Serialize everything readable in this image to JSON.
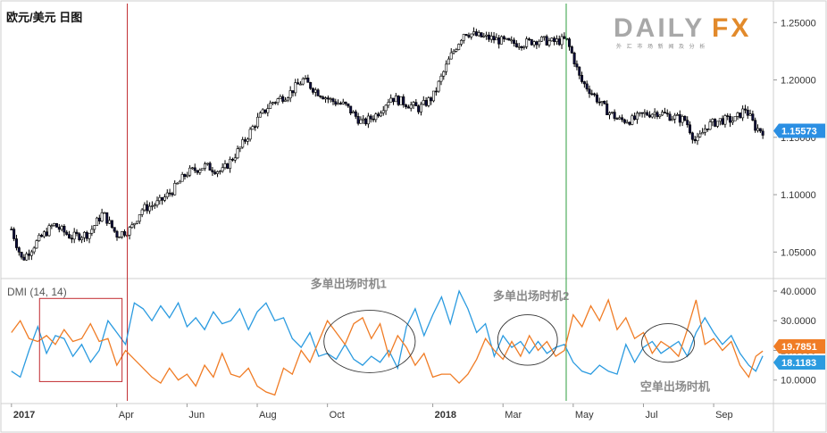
{
  "price_title": "欧元/美元 日图",
  "logo": {
    "word_left": "DAILY",
    "word_right": "FX",
    "tagline": "外 汇 市 场 新 闻 及 分 析",
    "colors": {
      "dark": "#a8a8a8",
      "accent": "#e28a2b"
    }
  },
  "colors": {
    "candle_up": "#ffffff",
    "candle_down": "#0d0d3a",
    "wick": "#000000",
    "plus_di": "#2b9be0",
    "minus_di": "#f07c25",
    "red_line": "#c0282d",
    "green_line": "#2e9e3e",
    "price_tag": "#2b8fe3"
  },
  "x_axis": {
    "labels": [
      "2017",
      "Apr",
      "Jun",
      "Aug",
      "Oct",
      "2018",
      "Mar",
      "May",
      "Jul",
      "Sep"
    ],
    "label_positions": [
      0.0,
      3.0,
      5.0,
      7.0,
      9.0,
      12.0,
      14.0,
      16.0,
      18.0,
      20.0
    ],
    "range": [
      -0.25,
      21.6
    ],
    "bold": [
      "2017",
      "2018"
    ]
  },
  "chart_data": [
    {
      "type": "candlestick",
      "title": "欧元/美元 日图",
      "ylim": [
        1.03,
        1.265
      ],
      "y_ticks": [
        "1.05000",
        "1.10000",
        "1.15000",
        "1.20000",
        "1.25000"
      ],
      "last_price_label": "1.15573",
      "last_price": 1.1557,
      "trend": [
        [
          0.0,
          1.07
        ],
        [
          0.3,
          1.043
        ],
        [
          0.7,
          1.058
        ],
        [
          1.2,
          1.074
        ],
        [
          1.7,
          1.063
        ],
        [
          2.2,
          1.066
        ],
        [
          2.6,
          1.084
        ],
        [
          3.0,
          1.065
        ],
        [
          3.4,
          1.07
        ],
        [
          3.7,
          1.087
        ],
        [
          4.2,
          1.093
        ],
        [
          4.6,
          1.104
        ],
        [
          5.0,
          1.119
        ],
        [
          5.5,
          1.125
        ],
        [
          6.0,
          1.12
        ],
        [
          6.5,
          1.14
        ],
        [
          7.0,
          1.165
        ],
        [
          7.4,
          1.18
        ],
        [
          7.9,
          1.188
        ],
        [
          8.3,
          1.2
        ],
        [
          8.7,
          1.19
        ],
        [
          9.1,
          1.182
        ],
        [
          9.5,
          1.178
        ],
        [
          10.0,
          1.162
        ],
        [
          10.4,
          1.17
        ],
        [
          10.8,
          1.185
        ],
        [
          11.2,
          1.18
        ],
        [
          11.6,
          1.175
        ],
        [
          12.0,
          1.185
        ],
        [
          12.5,
          1.22
        ],
        [
          12.9,
          1.242
        ],
        [
          13.3,
          1.238
        ],
        [
          13.7,
          1.236
        ],
        [
          14.2,
          1.232
        ],
        [
          14.6,
          1.232
        ],
        [
          15.0,
          1.235
        ],
        [
          15.4,
          1.233
        ],
        [
          15.8,
          1.235
        ],
        [
          16.0,
          1.22
        ],
        [
          16.2,
          1.2
        ],
        [
          16.5,
          1.19
        ],
        [
          16.9,
          1.175
        ],
        [
          17.3,
          1.165
        ],
        [
          17.7,
          1.165
        ],
        [
          18.0,
          1.17
        ],
        [
          18.4,
          1.172
        ],
        [
          18.8,
          1.168
        ],
        [
          19.2,
          1.165
        ],
        [
          19.5,
          1.145
        ],
        [
          19.8,
          1.16
        ],
        [
          20.2,
          1.165
        ],
        [
          20.6,
          1.165
        ],
        [
          20.9,
          1.175
        ],
        [
          21.2,
          1.158
        ],
        [
          21.4,
          1.1557
        ]
      ],
      "vertical_lines": [
        {
          "x": 3.3,
          "color": "red"
        },
        {
          "x": 15.8,
          "color": "green"
        }
      ]
    },
    {
      "type": "line",
      "title": "DMI (14, 14)",
      "ylim": [
        3.0,
        43.0
      ],
      "y_ticks": [
        "10.0000",
        "20.0000",
        "30.0000",
        "40.0000"
      ],
      "series": [
        {
          "role": "plus_di",
          "last_label": "18.1183",
          "values": [
            [
              0.0,
              13
            ],
            [
              0.25,
              11
            ],
            [
              0.5,
              20
            ],
            [
              0.75,
              28
            ],
            [
              1.0,
              19
            ],
            [
              1.25,
              25
            ],
            [
              1.5,
              24
            ],
            [
              1.75,
              18
            ],
            [
              2.0,
              22
            ],
            [
              2.25,
              16
            ],
            [
              2.5,
              20
            ],
            [
              2.75,
              30
            ],
            [
              3.0,
              26
            ],
            [
              3.25,
              22
            ],
            [
              3.5,
              36
            ],
            [
              3.75,
              34
            ],
            [
              4.0,
              30
            ],
            [
              4.25,
              35
            ],
            [
              4.5,
              31
            ],
            [
              4.75,
              36
            ],
            [
              5.0,
              28
            ],
            [
              5.25,
              31
            ],
            [
              5.5,
              27
            ],
            [
              5.75,
              33
            ],
            [
              6.0,
              29
            ],
            [
              6.25,
              30
            ],
            [
              6.5,
              34
            ],
            [
              6.75,
              27
            ],
            [
              7.0,
              33
            ],
            [
              7.25,
              36
            ],
            [
              7.5,
              30
            ],
            [
              7.75,
              31
            ],
            [
              8.0,
              24
            ],
            [
              8.25,
              21
            ],
            [
              8.5,
              26
            ],
            [
              8.75,
              18
            ],
            [
              9.0,
              19
            ],
            [
              9.25,
              17
            ],
            [
              9.5,
              22
            ],
            [
              9.75,
              17
            ],
            [
              10.0,
              15
            ],
            [
              10.25,
              18
            ],
            [
              10.5,
              16
            ],
            [
              10.75,
              20
            ],
            [
              11.0,
              14
            ],
            [
              11.25,
              28
            ],
            [
              11.5,
              34
            ],
            [
              11.75,
              25
            ],
            [
              12.0,
              32
            ],
            [
              12.25,
              38
            ],
            [
              12.5,
              29
            ],
            [
              12.75,
              40
            ],
            [
              13.0,
              34
            ],
            [
              13.25,
              26
            ],
            [
              13.5,
              29
            ],
            [
              13.75,
              18
            ],
            [
              14.0,
              25
            ],
            [
              14.25,
              21
            ],
            [
              14.5,
              23
            ],
            [
              14.75,
              19
            ],
            [
              15.0,
              23
            ],
            [
              15.25,
              19
            ],
            [
              15.5,
              21
            ],
            [
              15.75,
              22
            ],
            [
              16.0,
              16
            ],
            [
              16.25,
              13
            ],
            [
              16.5,
              12
            ],
            [
              16.75,
              15
            ],
            [
              17.0,
              13
            ],
            [
              17.25,
              12
            ],
            [
              17.5,
              22
            ],
            [
              17.75,
              16
            ],
            [
              18.0,
              21
            ],
            [
              18.25,
              23
            ],
            [
              18.5,
              19
            ],
            [
              18.75,
              21
            ],
            [
              19.0,
              23
            ],
            [
              19.25,
              18
            ],
            [
              19.5,
              26
            ],
            [
              19.75,
              31
            ],
            [
              20.0,
              26
            ],
            [
              20.25,
              22
            ],
            [
              20.5,
              25
            ],
            [
              20.75,
              19
            ],
            [
              21.0,
              15
            ],
            [
              21.2,
              13
            ],
            [
              21.4,
              18.12
            ]
          ]
        },
        {
          "role": "minus_di",
          "last_label": "19.7851",
          "values": [
            [
              0.0,
              26
            ],
            [
              0.25,
              30
            ],
            [
              0.5,
              24
            ],
            [
              0.75,
              23
            ],
            [
              1.0,
              25
            ],
            [
              1.25,
              22
            ],
            [
              1.5,
              27
            ],
            [
              1.75,
              23
            ],
            [
              2.0,
              24
            ],
            [
              2.25,
              29
            ],
            [
              2.5,
              23
            ],
            [
              2.75,
              24
            ],
            [
              3.0,
              15
            ],
            [
              3.25,
              20
            ],
            [
              3.5,
              17
            ],
            [
              3.75,
              14
            ],
            [
              4.0,
              11
            ],
            [
              4.25,
              9
            ],
            [
              4.5,
              14
            ],
            [
              4.75,
              10
            ],
            [
              5.0,
              12
            ],
            [
              5.25,
              8
            ],
            [
              5.5,
              15
            ],
            [
              5.75,
              11
            ],
            [
              6.0,
              19
            ],
            [
              6.25,
              12
            ],
            [
              6.5,
              11
            ],
            [
              6.75,
              14
            ],
            [
              7.0,
              8
            ],
            [
              7.25,
              6
            ],
            [
              7.5,
              5
            ],
            [
              7.75,
              14
            ],
            [
              8.0,
              12
            ],
            [
              8.25,
              20
            ],
            [
              8.5,
              16
            ],
            [
              8.75,
              23
            ],
            [
              9.0,
              30
            ],
            [
              9.25,
              26
            ],
            [
              9.5,
              22
            ],
            [
              9.75,
              29
            ],
            [
              10.0,
              31
            ],
            [
              10.25,
              24
            ],
            [
              10.5,
              29
            ],
            [
              10.75,
              18
            ],
            [
              11.0,
              25
            ],
            [
              11.25,
              21
            ],
            [
              11.5,
              15
            ],
            [
              11.75,
              19
            ],
            [
              12.0,
              11
            ],
            [
              12.25,
              12
            ],
            [
              12.5,
              12
            ],
            [
              12.75,
              9
            ],
            [
              13.0,
              12
            ],
            [
              13.25,
              17
            ],
            [
              13.5,
              24
            ],
            [
              13.75,
              20
            ],
            [
              14.0,
              17
            ],
            [
              14.25,
              23
            ],
            [
              14.5,
              18
            ],
            [
              14.75,
              25
            ],
            [
              15.0,
              20
            ],
            [
              15.25,
              23
            ],
            [
              15.5,
              18
            ],
            [
              15.75,
              20
            ],
            [
              16.0,
              32
            ],
            [
              16.25,
              28
            ],
            [
              16.5,
              35
            ],
            [
              16.75,
              30
            ],
            [
              17.0,
              37
            ],
            [
              17.25,
              27
            ],
            [
              17.5,
              31
            ],
            [
              17.75,
              24
            ],
            [
              18.0,
              26
            ],
            [
              18.25,
              19
            ],
            [
              18.5,
              23
            ],
            [
              18.75,
              21
            ],
            [
              19.0,
              18
            ],
            [
              19.25,
              27
            ],
            [
              19.5,
              37
            ],
            [
              19.75,
              22
            ],
            [
              20.0,
              24
            ],
            [
              20.25,
              20
            ],
            [
              20.5,
              23
            ],
            [
              20.75,
              15
            ],
            [
              21.0,
              11
            ],
            [
              21.2,
              18
            ],
            [
              21.4,
              19.79
            ]
          ]
        }
      ]
    }
  ],
  "annotations": [
    {
      "text": "多单出场时机1",
      "x": 9.6,
      "y": 41.0
    },
    {
      "text": "多单出场时机2",
      "x": 14.8,
      "y": 37.0
    },
    {
      "text": "空单出场时机",
      "x": 18.9,
      "y": 6.5
    }
  ],
  "highlight_box": {
    "x1": 0.8,
    "x2": 3.15,
    "y_top": 37.5,
    "y_bottom": 9.5
  },
  "ellipses": [
    {
      "cx": 10.2,
      "cy": 23.0,
      "rx": 1.3,
      "ry": 10.5
    },
    {
      "cx": 14.7,
      "cy": 23.5,
      "rx": 0.85,
      "ry": 8.5
    },
    {
      "cx": 18.7,
      "cy": 22.5,
      "rx": 0.75,
      "ry": 6.5
    }
  ]
}
